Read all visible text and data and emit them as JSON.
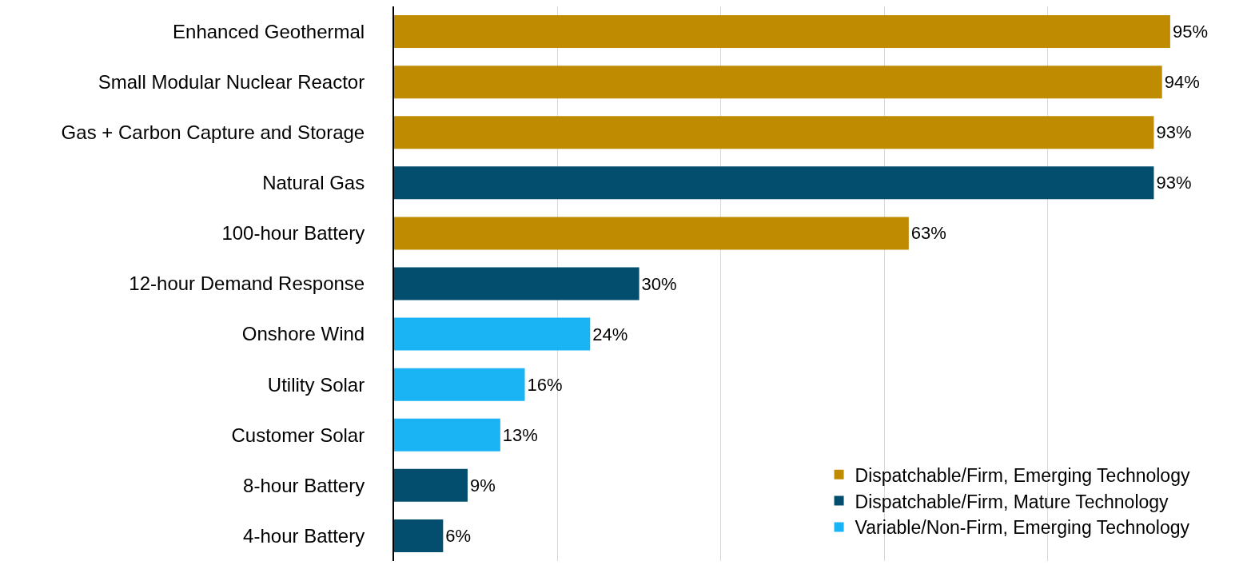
{
  "chart_data": {
    "type": "bar",
    "orientation": "horizontal",
    "categories": [
      "Enhanced Geothermal",
      "Small Modular Nuclear Reactor",
      "Gas + Carbon Capture and Storage",
      "Natural Gas",
      "100-hour Battery",
      "12-hour Demand Response",
      "Onshore Wind",
      "Utility Solar",
      "Customer Solar",
      "8-hour Battery",
      "4-hour Battery"
    ],
    "series": [
      {
        "name": "Dispatchable/Firm, Emerging Technology",
        "color": "#bf8b00",
        "values": [
          95,
          94,
          93,
          null,
          63,
          null,
          null,
          null,
          null,
          null,
          null
        ],
        "value_labels": [
          "95%",
          "94%",
          "93%",
          null,
          "63%",
          null,
          null,
          null,
          null,
          null,
          null
        ]
      },
      {
        "name": "Dispatchable/Firm, Mature Technology",
        "color": "#034e6e",
        "values": [
          null,
          null,
          null,
          93,
          null,
          30,
          null,
          null,
          null,
          9,
          6
        ],
        "value_labels": [
          null,
          null,
          null,
          "93%",
          null,
          "30%",
          null,
          null,
          null,
          "9%",
          "6%"
        ]
      },
      {
        "name": "Variable/Non-Firm, Emerging Technology",
        "color": "#1ab4f5",
        "values": [
          null,
          null,
          null,
          null,
          null,
          null,
          24,
          16,
          13,
          null,
          null
        ],
        "value_labels": [
          null,
          null,
          null,
          null,
          null,
          null,
          "24%",
          "16%",
          "13%",
          null,
          null
        ]
      }
    ],
    "grid": "x",
    "legend": "bottom right",
    "tick_labels": "y"
  }
}
